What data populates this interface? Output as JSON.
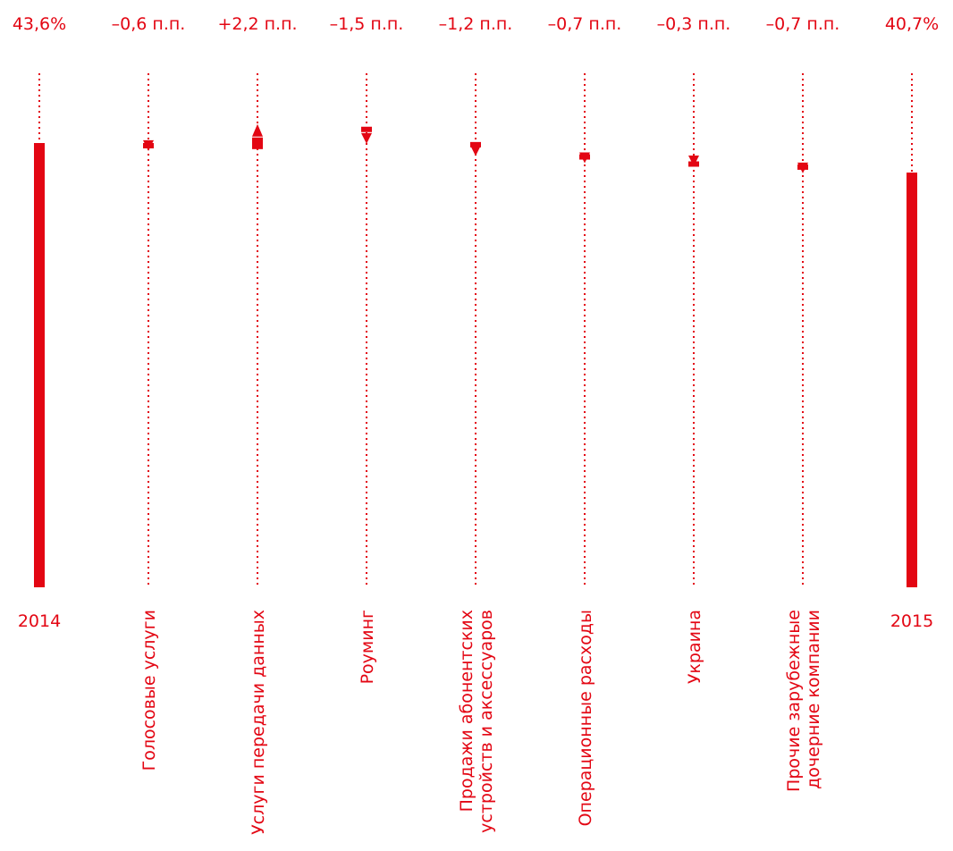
{
  "chart_data": {
    "type": "bar",
    "subtype": "waterfall",
    "color": "#e30613",
    "unit": "%",
    "start": {
      "category": "2014",
      "label": "43,6%",
      "value": 43.6
    },
    "end": {
      "category": "2015",
      "label": "40,7%",
      "value": 40.7
    },
    "steps": [
      {
        "category": "Голосовые услуги",
        "label": "–0,6 п.п.",
        "value": -0.6
      },
      {
        "category": "Услуги передачи данных",
        "label": "+2,2 п.п.",
        "value": 2.2
      },
      {
        "category": "Роуминг",
        "label": "–1,5 п.п.",
        "value": -1.5
      },
      {
        "category": "Продажи абонентских устройств и аксессуаров",
        "lines": [
          "Продажи абонентских",
          "устройств и аксессуаров"
        ],
        "label": "–1,2 п.п.",
        "value": -1.2
      },
      {
        "category": "Операционные расходы",
        "label": "–0,7 п.п.",
        "value": -0.7
      },
      {
        "category": "Украина",
        "label": "–0,3 п.п.",
        "value": -0.3
      },
      {
        "category": "Прочие зарубежные дочерние компании",
        "lines": [
          "Прочие зарубежные",
          "дочерние компании"
        ],
        "label": "–0,7 п.п.",
        "value": -0.7
      }
    ],
    "grid": false
  }
}
